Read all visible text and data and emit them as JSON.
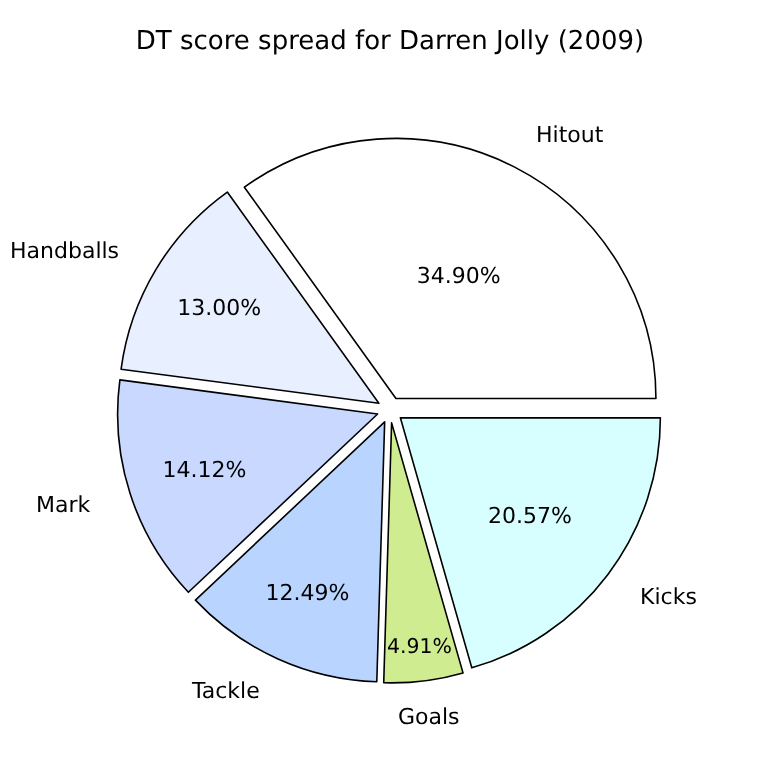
{
  "chart_data": {
    "type": "pie",
    "title": "DT score spread for Darren Jolly (2009)",
    "categories": [
      "Hitout",
      "Handballs",
      "Mark",
      "Tackle",
      "Goals",
      "Kicks"
    ],
    "values": [
      34.9,
      13.0,
      14.12,
      12.49,
      4.91,
      20.57
    ],
    "value_labels": [
      "34.90%",
      "13.00%",
      "14.12%",
      "12.49%",
      "4.91%",
      "20.57%"
    ],
    "colors": [
      "#ffffff",
      "#e8f0ff",
      "#c8d8ff",
      "#b8d4ff",
      "#d0ec90",
      "#d8ffff"
    ]
  }
}
